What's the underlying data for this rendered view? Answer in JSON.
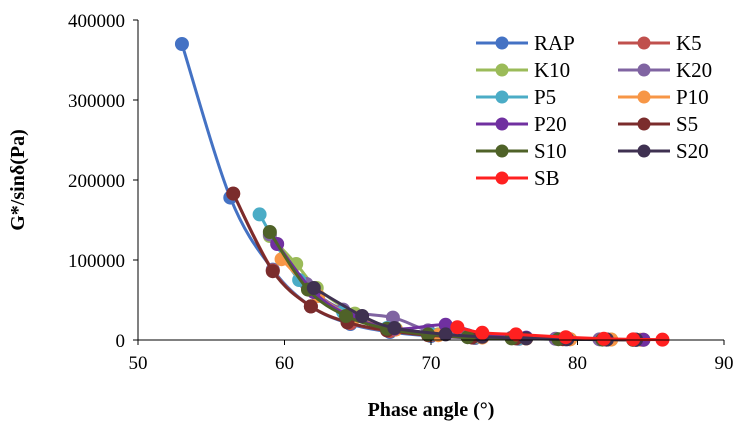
{
  "chart_data": {
    "type": "scatter",
    "title": "",
    "xlabel": "Phase angle (°)",
    "ylabel": "G*/sinδ(Pa)",
    "xlim": [
      50,
      90
    ],
    "ylim": [
      0,
      400000
    ],
    "xticks": [
      "50",
      "60",
      "70",
      "80",
      "90"
    ],
    "yticks": [
      "0",
      "100000",
      "200000",
      "300000",
      "400000"
    ],
    "grid": false,
    "legend_position": "top-right",
    "series": [
      {
        "name": "RAP",
        "color": "#4472C4",
        "points": [
          [
            53.0,
            370000
          ],
          [
            56.3,
            178000
          ],
          [
            59.2,
            88000
          ],
          [
            61.8,
            42000
          ],
          [
            64.5,
            20000
          ],
          [
            67.2,
            10000
          ],
          [
            70.0,
            5000
          ],
          [
            73.0,
            2500
          ],
          [
            76.0,
            1500
          ],
          [
            79.2,
            900
          ],
          [
            82.0,
            500
          ],
          [
            84.0,
            300
          ]
        ]
      },
      {
        "name": "K5",
        "color": "#C0504D",
        "points": [
          [
            56.5,
            183000
          ],
          [
            59.2,
            87000
          ],
          [
            61.8,
            42000
          ],
          [
            64.5,
            21000
          ],
          [
            67.2,
            11000
          ],
          [
            70.0,
            6000
          ],
          [
            73.0,
            3000
          ],
          [
            76.0,
            1800
          ],
          [
            79.2,
            1000
          ],
          [
            82.0,
            600
          ],
          [
            84.0,
            300
          ]
        ]
      },
      {
        "name": "K10",
        "color": "#9BBB59",
        "points": [
          [
            59.0,
            130000
          ],
          [
            60.8,
            95000
          ],
          [
            62.2,
            65000
          ],
          [
            64.8,
            33000
          ],
          [
            67.6,
            14000
          ],
          [
            70.5,
            7000
          ],
          [
            73.5,
            3500
          ],
          [
            76.5,
            2000
          ],
          [
            79.5,
            1000
          ],
          [
            82.3,
            600
          ],
          [
            84.5,
            300
          ]
        ]
      },
      {
        "name": "K20",
        "color": "#8064A2",
        "points": [
          [
            59.0,
            132000
          ],
          [
            61.5,
            70000
          ],
          [
            64.0,
            38000
          ],
          [
            67.4,
            28000
          ],
          [
            69.8,
            12000
          ],
          [
            72.5,
            6000
          ],
          [
            75.5,
            3000
          ],
          [
            78.5,
            1500
          ],
          [
            81.5,
            800
          ],
          [
            84.0,
            400
          ]
        ]
      },
      {
        "name": "P5",
        "color": "#4BACC6",
        "points": [
          [
            58.3,
            157000
          ],
          [
            61.0,
            75000
          ],
          [
            64.0,
            35000
          ],
          [
            67.0,
            15000
          ],
          [
            70.0,
            7000
          ],
          [
            73.0,
            3500
          ],
          [
            76.0,
            2000
          ],
          [
            79.2,
            1000
          ],
          [
            82.0,
            600
          ],
          [
            84.0,
            300
          ]
        ]
      },
      {
        "name": "P10",
        "color": "#F79646",
        "points": [
          [
            59.8,
            101000
          ],
          [
            62.3,
            55000
          ],
          [
            64.8,
            28000
          ],
          [
            67.6,
            13000
          ],
          [
            70.5,
            6000
          ],
          [
            73.5,
            3000
          ],
          [
            76.5,
            1800
          ],
          [
            79.5,
            900
          ],
          [
            82.3,
            500
          ],
          [
            84.3,
            300
          ]
        ]
      },
      {
        "name": "P20",
        "color": "#7030A0",
        "points": [
          [
            59.5,
            120000
          ],
          [
            62.0,
            60000
          ],
          [
            64.5,
            30000
          ],
          [
            67.5,
            14000
          ],
          [
            71.0,
            19000
          ],
          [
            73.5,
            8000
          ],
          [
            76.5,
            3000
          ],
          [
            79.3,
            1500
          ],
          [
            82.0,
            700
          ],
          [
            84.5,
            300
          ]
        ]
      },
      {
        "name": "S5",
        "color": "#7B2C2C",
        "points": [
          [
            56.5,
            183000
          ],
          [
            59.2,
            86000
          ],
          [
            61.8,
            42000
          ],
          [
            64.3,
            22000
          ],
          [
            67.0,
            12000
          ],
          [
            69.8,
            6000
          ],
          [
            72.8,
            3000
          ],
          [
            75.8,
            2000
          ],
          [
            79.0,
            1000
          ],
          [
            82.0,
            500
          ],
          [
            83.8,
            300
          ]
        ]
      },
      {
        "name": "S10",
        "color": "#4F6228",
        "points": [
          [
            59.0,
            135000
          ],
          [
            61.6,
            63000
          ],
          [
            64.2,
            30000
          ],
          [
            67.0,
            14000
          ],
          [
            69.8,
            7000
          ],
          [
            72.5,
            3500
          ],
          [
            75.5,
            2000
          ],
          [
            78.7,
            1000
          ],
          [
            81.7,
            500
          ],
          [
            83.8,
            300
          ]
        ]
      },
      {
        "name": "S20",
        "color": "#3F3151",
        "points": [
          [
            62.0,
            65000
          ],
          [
            65.3,
            30000
          ],
          [
            67.5,
            15000
          ],
          [
            71.0,
            7000
          ],
          [
            73.5,
            4000
          ],
          [
            76.5,
            2000
          ],
          [
            79.3,
            1000
          ],
          [
            82.0,
            500
          ],
          [
            84.0,
            300
          ]
        ]
      },
      {
        "name": "SB",
        "color": "#FF2020",
        "points": [
          [
            71.8,
            16000
          ],
          [
            73.5,
            9000
          ],
          [
            75.8,
            7000
          ],
          [
            79.2,
            3500
          ],
          [
            81.8,
            1500
          ],
          [
            83.8,
            800
          ],
          [
            85.8,
            400
          ]
        ]
      }
    ]
  }
}
